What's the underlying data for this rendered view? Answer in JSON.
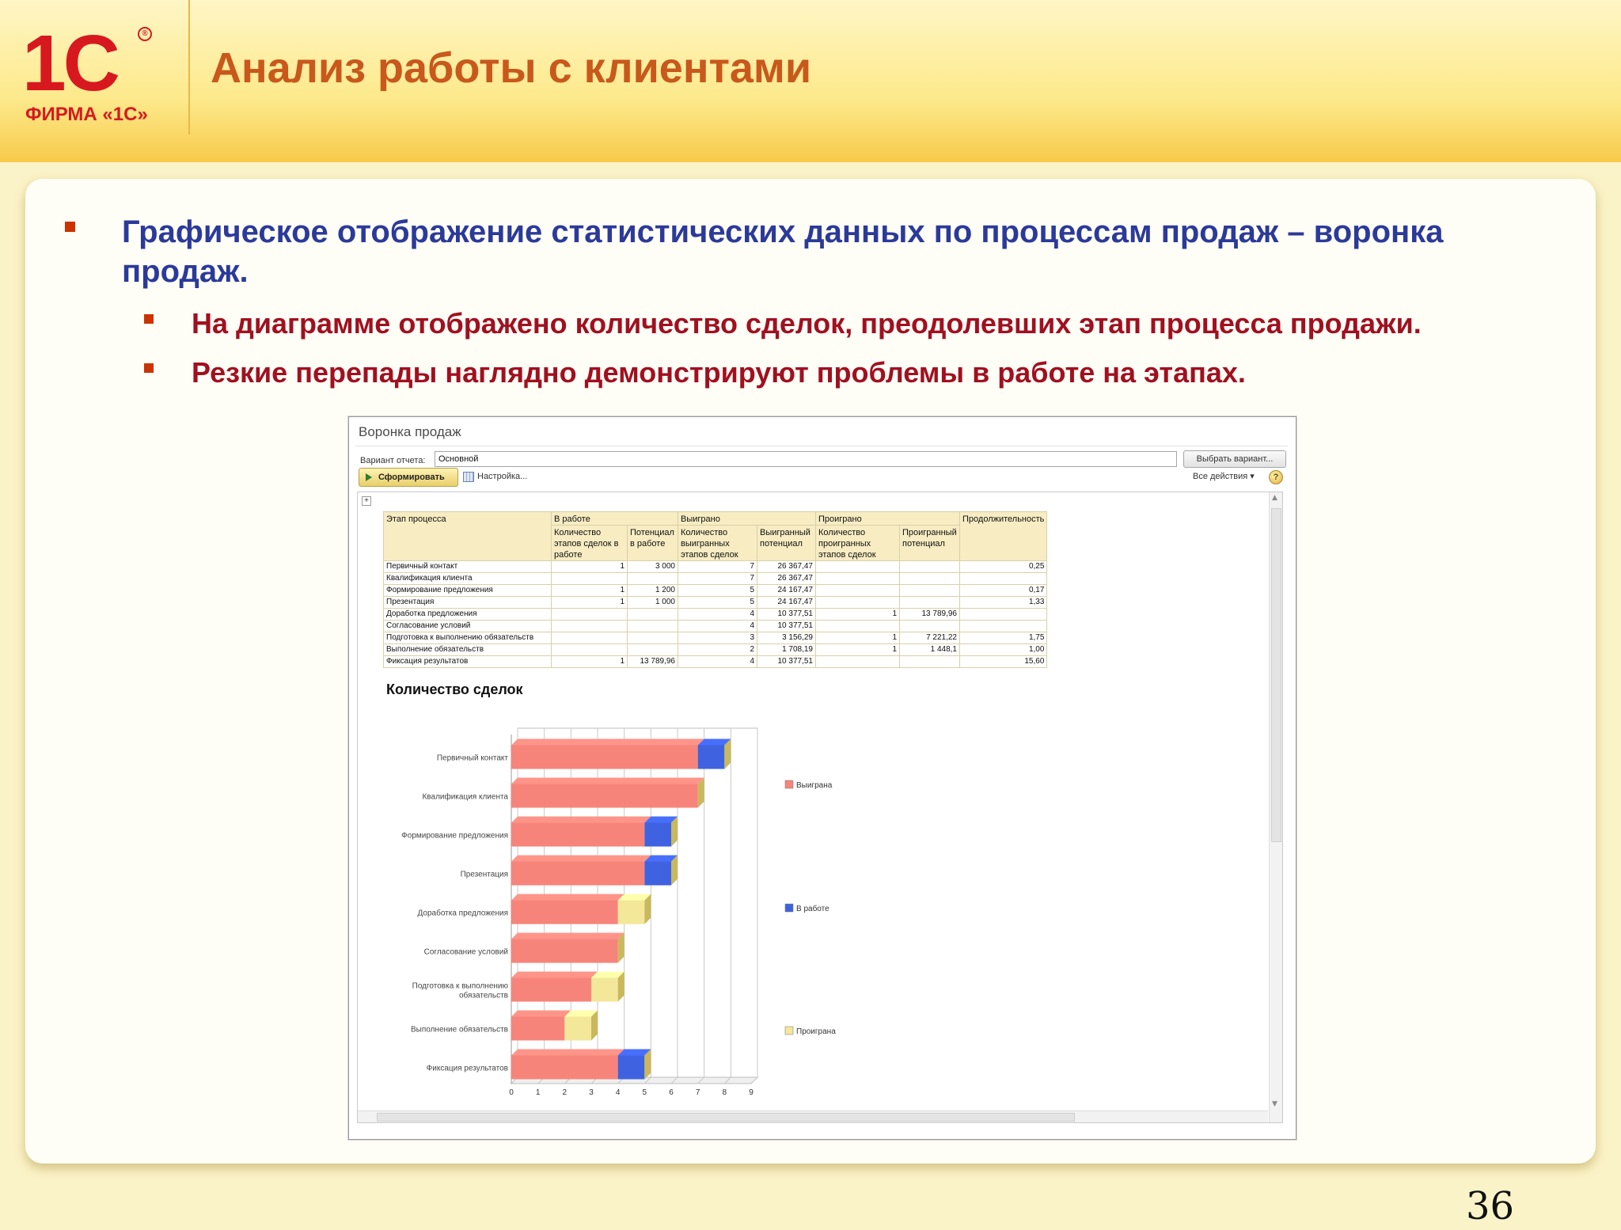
{
  "header": {
    "logo_text": "1С",
    "logo_reg": "®",
    "logo_firma": "ФИРМА «1С»",
    "title": "Анализ работы с клиентами"
  },
  "bullets": {
    "main": "Графическое отображение статистических данных по процессам продаж – воронка продаж.",
    "sub": [
      "На диаграмме отображено количество сделок, преодолевших этап процесса продажи.",
      "Резкие перепады наглядно демонстрируют проблемы в работе на этапах."
    ]
  },
  "page_number": "36",
  "window": {
    "title": "Воронка продаж",
    "variant_label": "Вариант отчета:",
    "variant_value": "Основной",
    "choose_variant_button": "Выбрать вариант...",
    "form_button": "Сформировать",
    "settings_button": "Настройка...",
    "all_actions": "Все действия ▾",
    "help": "?"
  },
  "table": {
    "group_headers": [
      "Этап процесса",
      "В работе",
      "Выиграно",
      "Проиграно",
      "Продолжительность"
    ],
    "sub_headers": [
      "Количество этапов сделок в работе",
      "Потенциал в работе",
      "Количество выигранных этапов сделок",
      "Выигранный потенциал",
      "Количество проигранных этапов сделок",
      "Проигранный потенциал"
    ],
    "rows": [
      [
        "Первичный контакт",
        "1",
        "3 000",
        "7",
        "26 367,47",
        "",
        "",
        "0,25"
      ],
      [
        "Квалификация клиента",
        "",
        "",
        "7",
        "26 367,47",
        "",
        "",
        ""
      ],
      [
        "Формирование предложения",
        "1",
        "1 200",
        "5",
        "24 167,47",
        "",
        "",
        "0,17"
      ],
      [
        "Презентация",
        "1",
        "1 000",
        "5",
        "24 167,47",
        "",
        "",
        "1,33"
      ],
      [
        "Доработка предложения",
        "",
        "",
        "4",
        "10 377,51",
        "1",
        "13 789,96",
        ""
      ],
      [
        "Согласование условий",
        "",
        "",
        "4",
        "10 377,51",
        "",
        "",
        ""
      ],
      [
        "Подготовка к выполнению обязательств",
        "",
        "",
        "3",
        "3 156,29",
        "1",
        "7 221,22",
        "1,75"
      ],
      [
        "Выполнение обязательств",
        "",
        "",
        "2",
        "1 708,19",
        "1",
        "1 448,1",
        "1,00"
      ],
      [
        "Фиксация результатов",
        "1",
        "13 789,96",
        "4",
        "10 377,51",
        "",
        "",
        "15,60"
      ]
    ]
  },
  "chart_data": {
    "type": "bar",
    "orientation": "horizontal",
    "stacked": true,
    "title": "Количество сделок",
    "categories": [
      "Первичный контакт",
      "Квалификация клиента",
      "Формирование предложения",
      "Презентация",
      "Доработка предложения",
      "Согласование условий",
      "Подготовка к выполнению обязательств",
      "Выполнение обязательств",
      "Фиксация результатов"
    ],
    "category_label_lines": [
      [
        "Первичный контакт"
      ],
      [
        "Квалификация клиента"
      ],
      [
        "Формирование предложения"
      ],
      [
        "Презентация"
      ],
      [
        "Доработка предложения"
      ],
      [
        "Согласование условий"
      ],
      [
        "Подготовка к выполнению",
        "обязательств"
      ],
      [
        "Выполнение обязательств"
      ],
      [
        "Фиксация результатов"
      ]
    ],
    "series": [
      {
        "name": "Выиграна",
        "color": "#f7847a",
        "values": [
          7,
          7,
          5,
          5,
          4,
          4,
          3,
          2,
          4
        ]
      },
      {
        "name": "В работе",
        "color": "#3f63e0",
        "values": [
          1,
          0,
          1,
          1,
          0,
          0,
          0,
          0,
          1
        ]
      },
      {
        "name": "Проиграна",
        "color": "#f3e79a",
        "values": [
          0,
          0,
          0,
          0,
          1,
          0,
          1,
          1,
          0
        ]
      }
    ],
    "xlim": [
      0,
      9
    ],
    "xticks": [
      "0",
      "1",
      "2",
      "3",
      "4",
      "5",
      "6",
      "7",
      "8",
      "9"
    ],
    "grid": true,
    "legend_position": "right"
  }
}
